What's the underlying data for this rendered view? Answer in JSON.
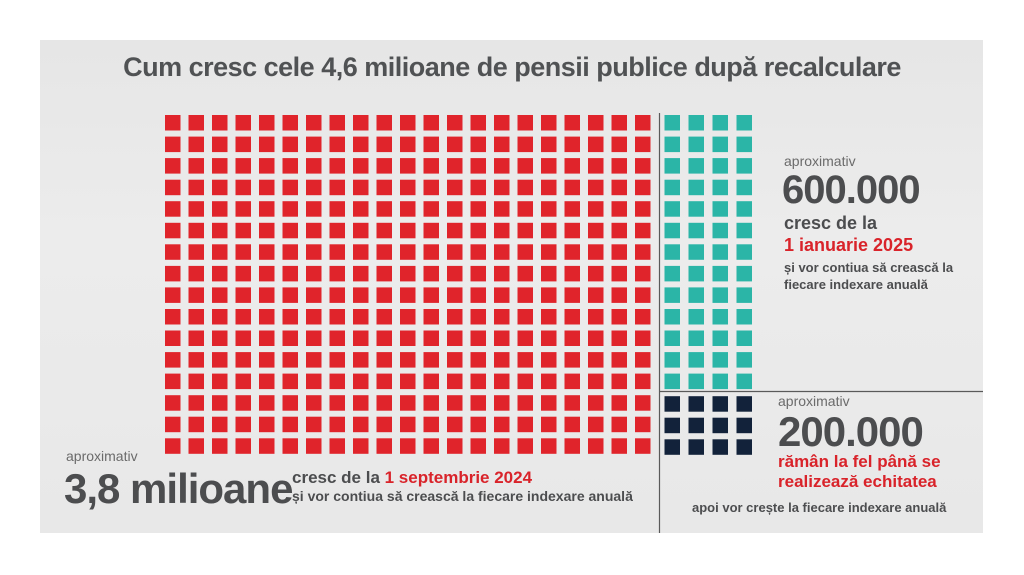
{
  "title": "Cum cresc cele 4,6 milioane de pensii publice după recalculare",
  "colors": {
    "red": "#e0242b",
    "teal": "#2bb5a7",
    "navy": "#12223a",
    "text": "#4c4d4f",
    "accent_text": "#d9232a"
  },
  "chart_data": {
    "type": "waffle",
    "title": "Cum cresc cele 4,6 milioane de pensii publice după recalculare",
    "total": "4,6 milioane",
    "grid": {
      "rows": 16,
      "columns": 25
    },
    "series": [
      {
        "name": "cresc de la 1 septembrie 2024",
        "value": 3800000,
        "label": "3,8 milioane",
        "squares": 336,
        "columns": 21,
        "rows": 16,
        "color": "#e0242b"
      },
      {
        "name": "cresc de la 1 ianuarie 2025",
        "value": 600000,
        "label": "600.000",
        "squares": 52,
        "columns": 4,
        "rows": 13,
        "color": "#2bb5a7"
      },
      {
        "name": "rămân la fel până se realizează echitatea",
        "value": 200000,
        "label": "200.000",
        "squares": 12,
        "columns": 4,
        "rows": 3,
        "color": "#12223a"
      }
    ]
  },
  "labels": {
    "red": {
      "approx": "aproximativ",
      "value": "3,8 milioane",
      "line1_prefix": "cresc de la ",
      "line1_date": "1 septembrie 2024",
      "line2": "și vor contiua să crească la fiecare indexare anuală"
    },
    "teal": {
      "approx": "aproximativ",
      "value": "600.000",
      "line1": "cresc de la",
      "date": "1 ianuarie 2025",
      "line3": "și vor contiua să crească la",
      "line4": "fiecare indexare anuală"
    },
    "navy": {
      "approx": "aproximativ",
      "value": "200.000",
      "line1": "rămân la fel până se",
      "line2": "realizează echitatea",
      "line3": "apoi vor crește la fiecare indexare anuală"
    }
  }
}
